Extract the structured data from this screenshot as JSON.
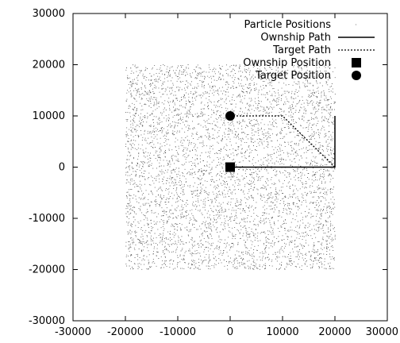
{
  "chart_data": {
    "type": "scatter",
    "title": "",
    "xlabel": "",
    "ylabel": "",
    "xlim": [
      -30000,
      30000
    ],
    "ylim": [
      -30000,
      30000
    ],
    "xticks": [
      -30000,
      -20000,
      -10000,
      0,
      10000,
      20000,
      30000
    ],
    "yticks": [
      -30000,
      -20000,
      -10000,
      0,
      10000,
      20000,
      30000
    ],
    "xtick_labels": [
      "-30000",
      "-20000",
      "-10000",
      "0",
      "10000",
      "20000",
      "30000"
    ],
    "ytick_labels": [
      "-30000",
      "-20000",
      "-10000",
      "0",
      "10000",
      "20000",
      "30000"
    ],
    "grid": false,
    "legend_position": "top-right",
    "series": [
      {
        "name": "Particle Positions",
        "kind": "points",
        "region": {
          "x": [
            -20000,
            20000
          ],
          "y": [
            -20000,
            20000
          ]
        },
        "color": "#000000"
      },
      {
        "name": "Ownship Path",
        "kind": "solid-line",
        "x": [
          0,
          20000,
          20000
        ],
        "y": [
          0,
          0,
          10000
        ],
        "color": "#000000"
      },
      {
        "name": "Target Path",
        "kind": "dotted-line",
        "x": [
          0,
          10000,
          20000
        ],
        "y": [
          10000,
          10000,
          0
        ],
        "color": "#000000"
      },
      {
        "name": "Ownship Position",
        "kind": "square-marker",
        "x": [
          0
        ],
        "y": [
          0
        ],
        "color": "#000000"
      },
      {
        "name": "Target Position",
        "kind": "circle-marker",
        "x": [
          0
        ],
        "y": [
          10000
        ],
        "color": "#000000"
      }
    ]
  }
}
